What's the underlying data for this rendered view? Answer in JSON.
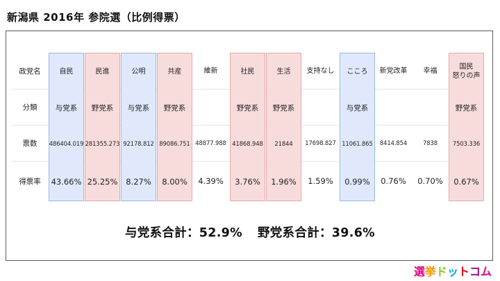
{
  "title": "新潟県 2016年 参院選（比例得票）",
  "row_labels": {
    "party": "政党名",
    "category": "分類",
    "votes": "票数",
    "rate": "得票率"
  },
  "parties": [
    {
      "name": "自民",
      "category": "与党系",
      "votes": "486404.019",
      "rate": "43.66%",
      "shade": "blue"
    },
    {
      "name": "民進",
      "category": "野党系",
      "votes": "281355.273",
      "rate": "25.25%",
      "shade": "pink"
    },
    {
      "name": "公明",
      "category": "与党系",
      "votes": "92178.812",
      "rate": "8.27%",
      "shade": "blue"
    },
    {
      "name": "共産",
      "category": "野党系",
      "votes": "89086.751",
      "rate": "8.00%",
      "shade": "pink"
    },
    {
      "name": "維新",
      "category": "",
      "votes": "48877.988",
      "rate": "4.39%",
      "shade": "none"
    },
    {
      "name": "社民",
      "category": "野党系",
      "votes": "41868.948",
      "rate": "3.76%",
      "shade": "pink"
    },
    {
      "name": "生活",
      "category": "野党系",
      "votes": "21844",
      "rate": "1.96%",
      "shade": "pink"
    },
    {
      "name": "支持なし",
      "category": "",
      "votes": "17698.827",
      "rate": "1.59%",
      "shade": "none"
    },
    {
      "name": "こころ",
      "category": "与党系",
      "votes": "11061.865",
      "rate": "0.99%",
      "shade": "blue"
    },
    {
      "name": "新党改革",
      "category": "",
      "votes": "8414.854",
      "rate": "0.76%",
      "shade": "none"
    },
    {
      "name": "幸福",
      "category": "",
      "votes": "7838",
      "rate": "0.70%",
      "shade": "none"
    },
    {
      "name": "国民\n怒りの声",
      "category": "野党系",
      "votes": "7503.336",
      "rate": "0.67%",
      "shade": "pink"
    }
  ],
  "summary": {
    "ruling": "与党系合計：52.9%",
    "opposition": "野党系合計：39.6%"
  },
  "logo": {
    "text": "選挙ドットコム",
    "colors": [
      "#e6007e",
      "#f39800",
      "#8fc31f",
      "#00a0e9",
      "#e60012",
      "#920783"
    ]
  }
}
